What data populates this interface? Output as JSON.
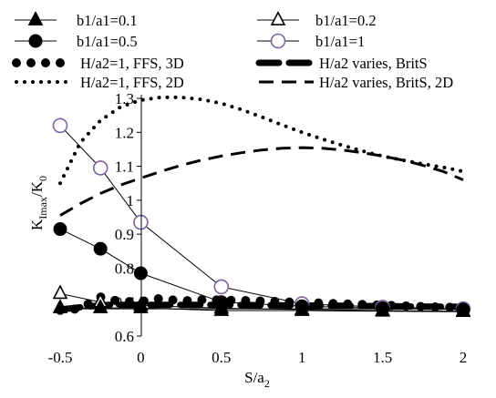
{
  "chart_data": {
    "type": "line",
    "title": "",
    "xlabel": {
      "main": "S/a",
      "sub": "2"
    },
    "ylabel": {
      "main": "K",
      "sub": "Imax",
      "mid": "/K",
      "sub2": "0"
    },
    "xlim": [
      -0.5,
      2
    ],
    "ylim": [
      0.6,
      1.3
    ],
    "xticks": [
      "-0.5",
      "0",
      "0.5",
      "1",
      "1.5",
      "2"
    ],
    "yticks": [
      "0.6",
      "0.7",
      "0.8",
      "0.9",
      "1",
      "1.1",
      "1.2",
      "1.3"
    ],
    "grid": false,
    "legend_position": "top",
    "series": [
      {
        "name": "b1/a1=0.1",
        "marker": "triangle-filled",
        "line": "thin",
        "x": [
          -0.5,
          -0.25,
          0,
          0.5,
          1,
          1.5,
          2
        ],
        "y": [
          0.683,
          0.683,
          0.683,
          0.675,
          0.675,
          0.673,
          0.672
        ]
      },
      {
        "name": "b1/a1=0.2",
        "marker": "triangle-open",
        "line": "thin",
        "x": [
          -0.5,
          -0.25,
          0,
          0.5,
          1,
          1.5,
          2
        ],
        "y": [
          0.725,
          0.7,
          0.69,
          0.682,
          0.678,
          0.675,
          0.673
        ]
      },
      {
        "name": "b1/a1=0.5",
        "marker": "circle-filled",
        "line": "thin",
        "x": [
          -0.5,
          -0.25,
          0,
          0.5,
          1,
          1.5,
          2
        ],
        "y": [
          0.915,
          0.857,
          0.785,
          0.7,
          0.688,
          0.682,
          0.678
        ]
      },
      {
        "name": "b1/a1=1",
        "marker": "circle-open",
        "line": "thin",
        "x": [
          -0.5,
          -0.25,
          0,
          0.5,
          1,
          1.5,
          2
        ],
        "y": [
          1.22,
          1.095,
          0.935,
          0.745,
          0.695,
          0.685,
          0.68
        ]
      },
      {
        "name": "H/a2=1, FFS, 3D",
        "marker": "none",
        "line": "big-dots",
        "x": [
          -0.5,
          -0.375,
          -0.25,
          -0.125,
          0,
          0.125,
          0.25,
          0.375,
          0.5,
          0.625,
          0.75,
          0.875,
          1,
          1.125,
          1.25,
          1.375,
          1.5,
          1.625,
          1.75,
          1.875,
          2
        ],
        "y": [
          0.676,
          0.681,
          0.715,
          0.701,
          0.702,
          0.711,
          0.703,
          0.707,
          0.706,
          0.705,
          0.703,
          0.701,
          0.699,
          0.697,
          0.695,
          0.693,
          0.691,
          0.689,
          0.687,
          0.685,
          0.684
        ]
      },
      {
        "name": "H/a2 varies, BritS",
        "marker": "none",
        "line": "big-dashes",
        "x": [
          -0.5,
          -0.35,
          -0.2,
          0,
          0.25,
          0.5,
          0.75,
          1,
          1.25,
          1.5,
          1.75,
          2
        ],
        "y": [
          0.678,
          0.686,
          0.692,
          0.692,
          0.692,
          0.692,
          0.691,
          0.69,
          0.689,
          0.688,
          0.687,
          0.686
        ]
      },
      {
        "name": "H/a2=1, FFS, 2D",
        "marker": "none",
        "line": "dotted",
        "x": [
          -0.5,
          -0.375,
          -0.25,
          -0.125,
          0,
          0.125,
          0.25,
          0.375,
          0.5,
          0.625,
          0.75,
          0.875,
          1,
          1.125,
          1.25,
          1.375,
          1.5,
          1.625,
          1.75,
          1.875,
          2
        ],
        "y": [
          1.05,
          1.17,
          1.235,
          1.275,
          1.295,
          1.303,
          1.303,
          1.297,
          1.285,
          1.267,
          1.245,
          1.222,
          1.2,
          1.18,
          1.162,
          1.145,
          1.13,
          1.118,
          1.107,
          1.097,
          1.085
        ]
      },
      {
        "name": "H/a2 varies, BritS, 2D",
        "marker": "none",
        "line": "dashed",
        "x": [
          -0.5,
          -0.375,
          -0.25,
          -0.125,
          0,
          0.125,
          0.25,
          0.375,
          0.5,
          0.625,
          0.75,
          0.875,
          1,
          1.125,
          1.25,
          1.375,
          1.5,
          1.625,
          1.75,
          1.875,
          2
        ],
        "y": [
          0.955,
          0.99,
          1.02,
          1.045,
          1.065,
          1.085,
          1.103,
          1.118,
          1.13,
          1.14,
          1.148,
          1.153,
          1.155,
          1.153,
          1.148,
          1.14,
          1.13,
          1.118,
          1.103,
          1.085,
          1.06
        ]
      }
    ]
  }
}
